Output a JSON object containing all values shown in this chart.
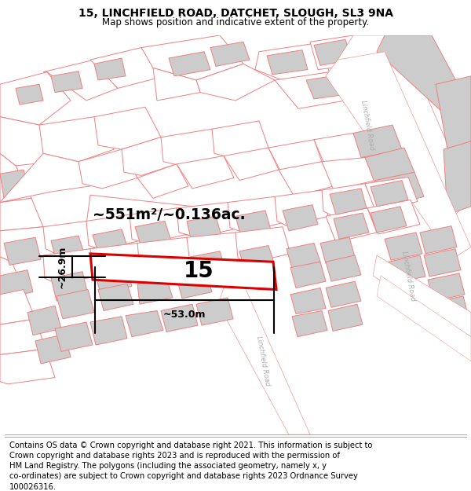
{
  "title": "15, LINCHFIELD ROAD, DATCHET, SLOUGH, SL3 9NA",
  "subtitle": "Map shows position and indicative extent of the property.",
  "footer": "Contains OS data © Crown copyright and database right 2021. This information is subject to\nCrown copyright and database rights 2023 and is reproduced with the permission of\nHM Land Registry. The polygons (including the associated geometry, namely x, y\nco-ordinates) are subject to Crown copyright and database rights 2023 Ordnance Survey\n100026316.",
  "title_fontsize": 10,
  "subtitle_fontsize": 8.5,
  "footer_fontsize": 7.2,
  "area_text": "~551m²/~0.136ac.",
  "width_text": "~53.0m",
  "height_text": "~26.9m",
  "property_number": "15",
  "road_label": "Linchfield Road",
  "pink_color": "#f08080",
  "red_color": "#dd0000",
  "gray_fill": "#cccccc",
  "white": "#ffffff"
}
